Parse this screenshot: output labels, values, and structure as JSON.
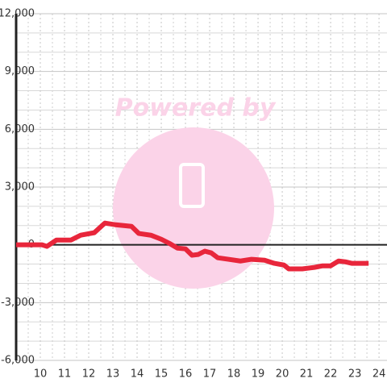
{
  "chart_data": {
    "type": "line",
    "watermark": "Powered by",
    "x": [
      9.0,
      10.07,
      10.27,
      10.67,
      11.27,
      11.67,
      12.23,
      12.67,
      13.07,
      13.77,
      14.07,
      14.57,
      15.0,
      15.33,
      15.67,
      16.0,
      16.27,
      16.53,
      16.8,
      17.07,
      17.33,
      17.77,
      18.27,
      18.73,
      19.27,
      19.67,
      20.07,
      20.27,
      20.83,
      21.33,
      21.67,
      22.0,
      22.33,
      22.6,
      22.87,
      23.57
    ],
    "series": [
      {
        "color": "#e8263b",
        "values": [
          0,
          0,
          -80,
          250,
          250,
          500,
          630,
          1130,
          1050,
          960,
          590,
          500,
          290,
          80,
          -170,
          -210,
          -540,
          -500,
          -330,
          -420,
          -670,
          -750,
          -840,
          -750,
          -800,
          -960,
          -1050,
          -1250,
          -1250,
          -1170,
          -1090,
          -1090,
          -840,
          -880,
          -960,
          -960
        ]
      }
    ],
    "xlim": [
      9,
      24.33
    ],
    "xticks": [
      10,
      11,
      12,
      13,
      14,
      15,
      16,
      17,
      18,
      19,
      20,
      21,
      22,
      23,
      24
    ],
    "ylim": [
      -6000,
      12000
    ],
    "yticks": [
      {
        "value": -6000,
        "label": "-6,000"
      },
      {
        "value": -3000,
        "label": "-3,000"
      },
      0,
      {
        "value": 3000,
        "label": "3,000"
      },
      {
        "value": 6000,
        "label": "6,000"
      },
      {
        "value": 9000,
        "label": "9,000"
      },
      {
        "value": 12000,
        "label": "12,000"
      }
    ],
    "grid": true
  }
}
